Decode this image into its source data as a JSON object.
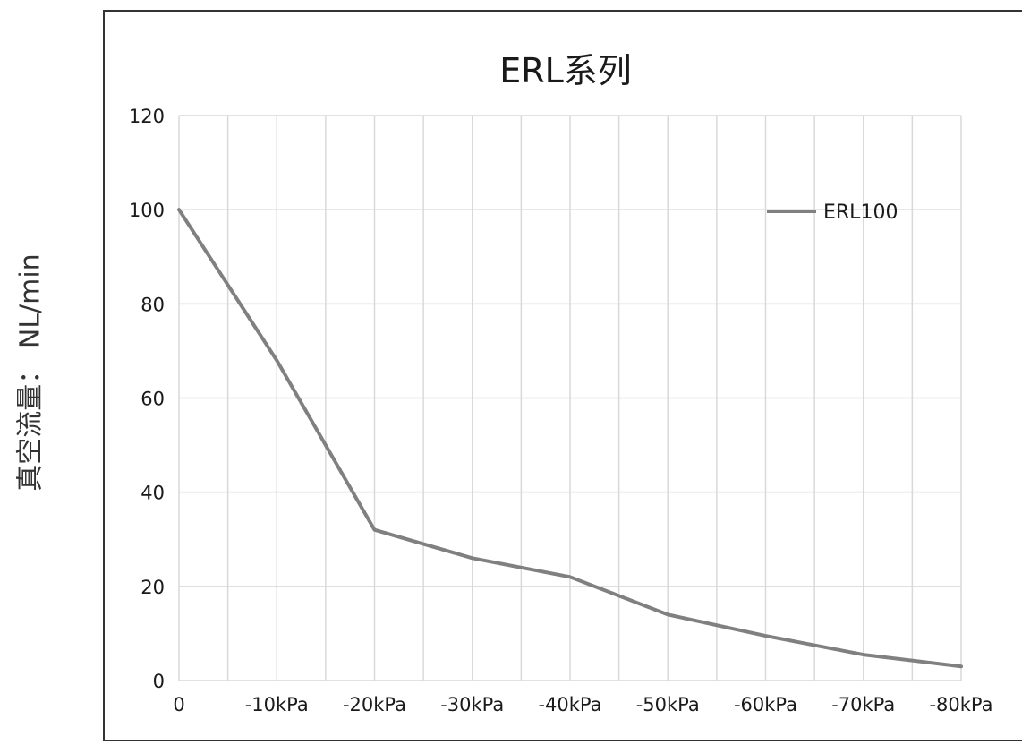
{
  "chart_data": {
    "type": "line",
    "title": "ERL系列",
    "xlabel": "",
    "ylabel": "真空流量： NL/min",
    "categories": [
      "0",
      "-10kPa",
      "-20kPa",
      "-30kPa",
      "-40kPa",
      "-50kPa",
      "-60kPa",
      "-70kPa",
      "-80kPa"
    ],
    "series": [
      {
        "name": "ERL100",
        "color": "#808080",
        "values": [
          100,
          68,
          32,
          26,
          22,
          14,
          9.5,
          5.5,
          3
        ]
      }
    ],
    "ylim": [
      0,
      120
    ],
    "yticks": [
      0,
      20,
      40,
      60,
      80,
      100,
      120
    ],
    "grid": true,
    "legend": "top-right"
  }
}
